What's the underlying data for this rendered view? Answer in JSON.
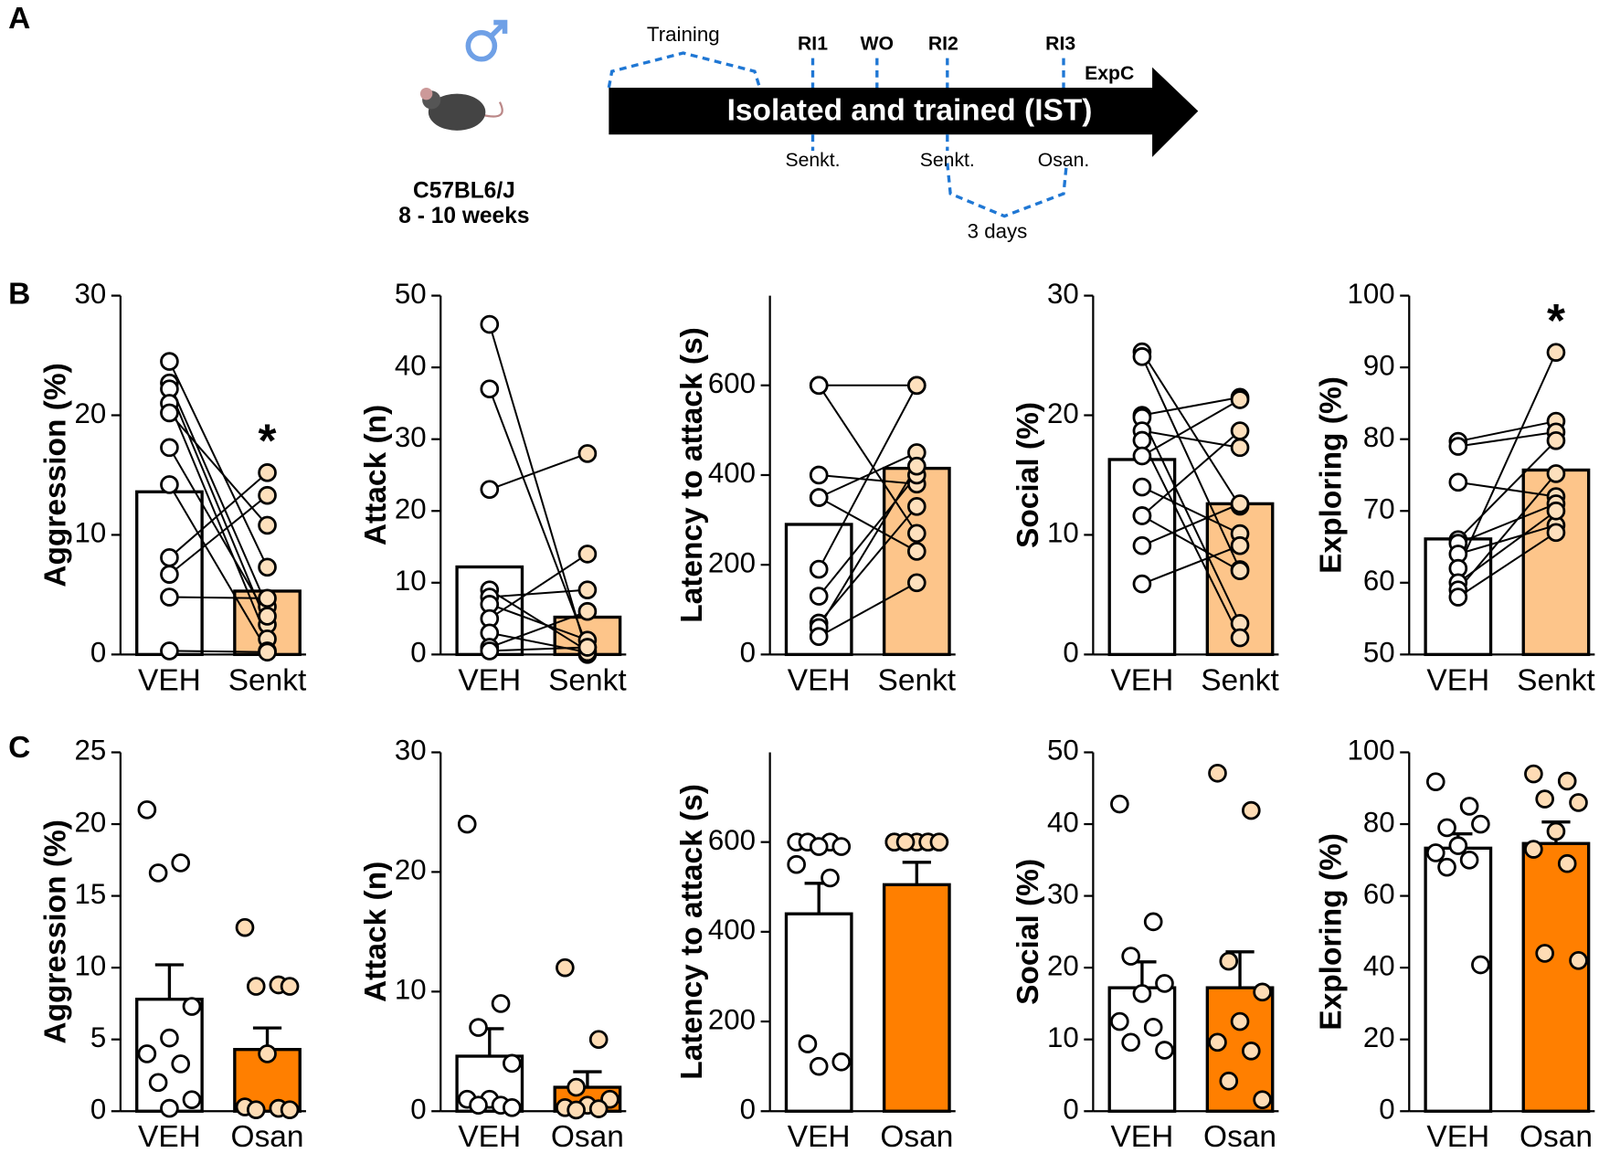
{
  "panel_labels": [
    "A",
    "B",
    "C"
  ],
  "diagram": {
    "strain": "C57BL6/J",
    "age": "8 - 10 weeks",
    "timeline": "Isolated and trained (IST)",
    "phases": [
      "Training",
      "RI1",
      "WO",
      "RI2",
      "RI3",
      "ExpC"
    ],
    "treatments": [
      "Senkt.",
      "Senkt.",
      "Osan."
    ],
    "interval": "3 days"
  },
  "chart_data": [
    {
      "type": "bar",
      "ylabel": "Aggression (%)",
      "categories": [
        "VEH",
        "Senkt"
      ],
      "values": [
        13.6,
        5.3
      ],
      "bar_colors": [
        "#ffffff",
        "#fdc58a"
      ],
      "point_colors": [
        "#ffffff",
        "#fde0bd"
      ],
      "paired": true,
      "points": [
        [
          24.5,
          22.7,
          22.2,
          21.0,
          20.2,
          17.3,
          14.2,
          8.1,
          6.7,
          4.8,
          0.3
        ],
        [
          7.3,
          4.0,
          2.5,
          1.3,
          10.8,
          3.2,
          0.3,
          15.2,
          13.3,
          4.7,
          0.2
        ]
      ],
      "ylim": [
        0,
        30
      ],
      "yticks": [
        0,
        10,
        20,
        30
      ],
      "annotations": [
        {
          "index": 1,
          "text": "*"
        }
      ]
    },
    {
      "type": "bar",
      "ylabel": "Attack (n)",
      "categories": [
        "VEH",
        "Senkt"
      ],
      "values": [
        12.2,
        5.2
      ],
      "bar_colors": [
        "#ffffff",
        "#fdc58a"
      ],
      "point_colors": [
        "#ffffff",
        "#fde0bd"
      ],
      "paired": true,
      "points": [
        [
          46,
          37,
          23,
          9,
          8,
          7,
          5,
          3,
          1,
          0.5
        ],
        [
          0,
          1,
          28,
          0.5,
          9,
          2,
          14,
          0.3,
          6,
          1
        ]
      ],
      "ylim": [
        0,
        50
      ],
      "yticks": [
        0,
        10,
        20,
        30,
        40,
        50
      ]
    },
    {
      "type": "bar",
      "ylabel": "Latency to attack (s)",
      "categories": [
        "VEH",
        "Senkt"
      ],
      "values": [
        290,
        415
      ],
      "bar_colors": [
        "#ffffff",
        "#fdc58a"
      ],
      "point_colors": [
        "#ffffff",
        "#fde0bd"
      ],
      "paired": true,
      "points": [
        [
          600,
          600,
          400,
          350,
          350,
          190,
          130,
          70,
          60,
          40
        ],
        [
          600,
          270,
          380,
          450,
          230,
          600,
          400,
          330,
          420,
          160
        ]
      ],
      "ylim": [
        0,
        800
      ],
      "yticks": [
        0,
        200,
        400,
        600
      ]
    },
    {
      "type": "bar",
      "ylabel": "Social (%)",
      "categories": [
        "VEH",
        "Senkt"
      ],
      "values": [
        16.3,
        12.6
      ],
      "bar_colors": [
        "#ffffff",
        "#fdc58a"
      ],
      "point_colors": [
        "#ffffff",
        "#fde0bd"
      ],
      "paired": true,
      "points": [
        [
          25.3,
          24.9,
          20.0,
          19.8,
          18.7,
          17.9,
          16.6,
          14.0,
          11.6,
          11.6,
          9.1,
          5.9
        ],
        [
          12.4,
          7.1,
          21.5,
          2.6,
          17.3,
          1.4,
          21.3,
          10.1,
          18.7,
          7.0,
          12.6,
          9.1
        ]
      ],
      "ylim": [
        0,
        30
      ],
      "yticks": [
        0,
        10,
        20,
        30
      ]
    },
    {
      "type": "bar",
      "ylabel": "Exploring (%)",
      "categories": [
        "VEH",
        "Senkt"
      ],
      "values": [
        66.1,
        75.7
      ],
      "bar_colors": [
        "#ffffff",
        "#fdc58a"
      ],
      "point_colors": [
        "#ffffff",
        "#fde0bd"
      ],
      "paired": true,
      "points": [
        [
          79.7,
          79,
          74,
          66,
          65.5,
          64,
          62,
          60,
          59,
          58
        ],
        [
          82.5,
          81,
          72,
          79.8,
          71,
          68,
          92.1,
          70,
          75.2,
          67
        ]
      ],
      "ylim": [
        50,
        100
      ],
      "yticks": [
        50,
        60,
        70,
        80,
        90,
        100
      ],
      "annotations": [
        {
          "index": 1,
          "text": "*"
        }
      ]
    },
    {
      "type": "bar",
      "ylabel": "Aggression (%)",
      "categories": [
        "VEH",
        "Osan"
      ],
      "values": [
        7.8,
        4.3
      ],
      "errors": [
        2.4,
        1.5
      ],
      "bar_colors": [
        "#ffffff",
        "#ff7f00"
      ],
      "point_colors": [
        "#ffffff",
        "#fedcb5"
      ],
      "paired": false,
      "points": [
        [
          21.0,
          17.3,
          16.6,
          7.3,
          5.1,
          4.0,
          3.3,
          2.0,
          0.8,
          0.2
        ],
        [
          12.8,
          8.8,
          8.7,
          8.7,
          4.0,
          0.3,
          0.2,
          0.1,
          0.1
        ]
      ],
      "ylim": [
        0,
        25
      ],
      "yticks": [
        0,
        5,
        10,
        15,
        20,
        25
      ]
    },
    {
      "type": "bar",
      "ylabel": "Attack (n)",
      "categories": [
        "VEH",
        "Osan"
      ],
      "values": [
        4.6,
        2.0
      ],
      "errors": [
        2.3,
        1.3
      ],
      "bar_colors": [
        "#ffffff",
        "#ff7f00"
      ],
      "point_colors": [
        "#ffffff",
        "#fedcb5"
      ],
      "paired": false,
      "points": [
        [
          24,
          9,
          7,
          4,
          1,
          1,
          0.5,
          0.5,
          0.3
        ],
        [
          12,
          6,
          2,
          1,
          0.5,
          0.3,
          0.2,
          0.1
        ]
      ],
      "ylim": [
        0,
        30
      ],
      "yticks": [
        0,
        10,
        20,
        30
      ]
    },
    {
      "type": "bar",
      "ylabel": "Latency to attack (s)",
      "categories": [
        "VEH",
        "Osan"
      ],
      "values": [
        440,
        505
      ],
      "errors": [
        68,
        50
      ],
      "bar_colors": [
        "#ffffff",
        "#ff7f00"
      ],
      "point_colors": [
        "#ffffff",
        "#fedcb5"
      ],
      "paired": false,
      "points": [
        [
          600,
          600,
          600,
          590,
          590,
          550,
          520,
          150,
          110,
          100
        ],
        [
          600,
          600,
          600,
          600,
          600,
          600,
          600,
          600,
          600
        ]
      ],
      "ylim": [
        0,
        800
      ],
      "yticks": [
        0,
        200,
        400,
        600
      ]
    },
    {
      "type": "bar",
      "ylabel": "Social (%)",
      "categories": [
        "VEH",
        "Osan"
      ],
      "values": [
        17.2,
        17.2
      ],
      "errors": [
        3.6,
        5.0
      ],
      "bar_colors": [
        "#ffffff",
        "#ff7f00"
      ],
      "point_colors": [
        "#ffffff",
        "#fedcb5"
      ],
      "paired": false,
      "points": [
        [
          42.8,
          26.4,
          21.6,
          17.8,
          16.4,
          12.5,
          11.7,
          9.6,
          8.5
        ],
        [
          47.1,
          41.9,
          20.9,
          16.6,
          12.5,
          9.6,
          8.4,
          4.2,
          1.6
        ]
      ],
      "ylim": [
        0,
        50
      ],
      "yticks": [
        0,
        10,
        20,
        30,
        40,
        50
      ]
    },
    {
      "type": "bar",
      "ylabel": "Exploring (%)",
      "categories": [
        "VEH",
        "Osan"
      ],
      "values": [
        73.3,
        74.6
      ],
      "errors": [
        4.0,
        6.0
      ],
      "bar_colors": [
        "#ffffff",
        "#ff7f00"
      ],
      "point_colors": [
        "#ffffff",
        "#fedcb5"
      ],
      "paired": false,
      "points": [
        [
          91.8,
          85,
          79,
          80,
          74,
          72,
          70,
          68,
          40.8
        ],
        [
          94,
          92,
          87,
          86,
          78,
          73,
          69,
          44,
          42
        ]
      ],
      "ylim": [
        0,
        100
      ],
      "yticks": [
        0,
        20,
        40,
        60,
        80,
        100
      ]
    }
  ]
}
